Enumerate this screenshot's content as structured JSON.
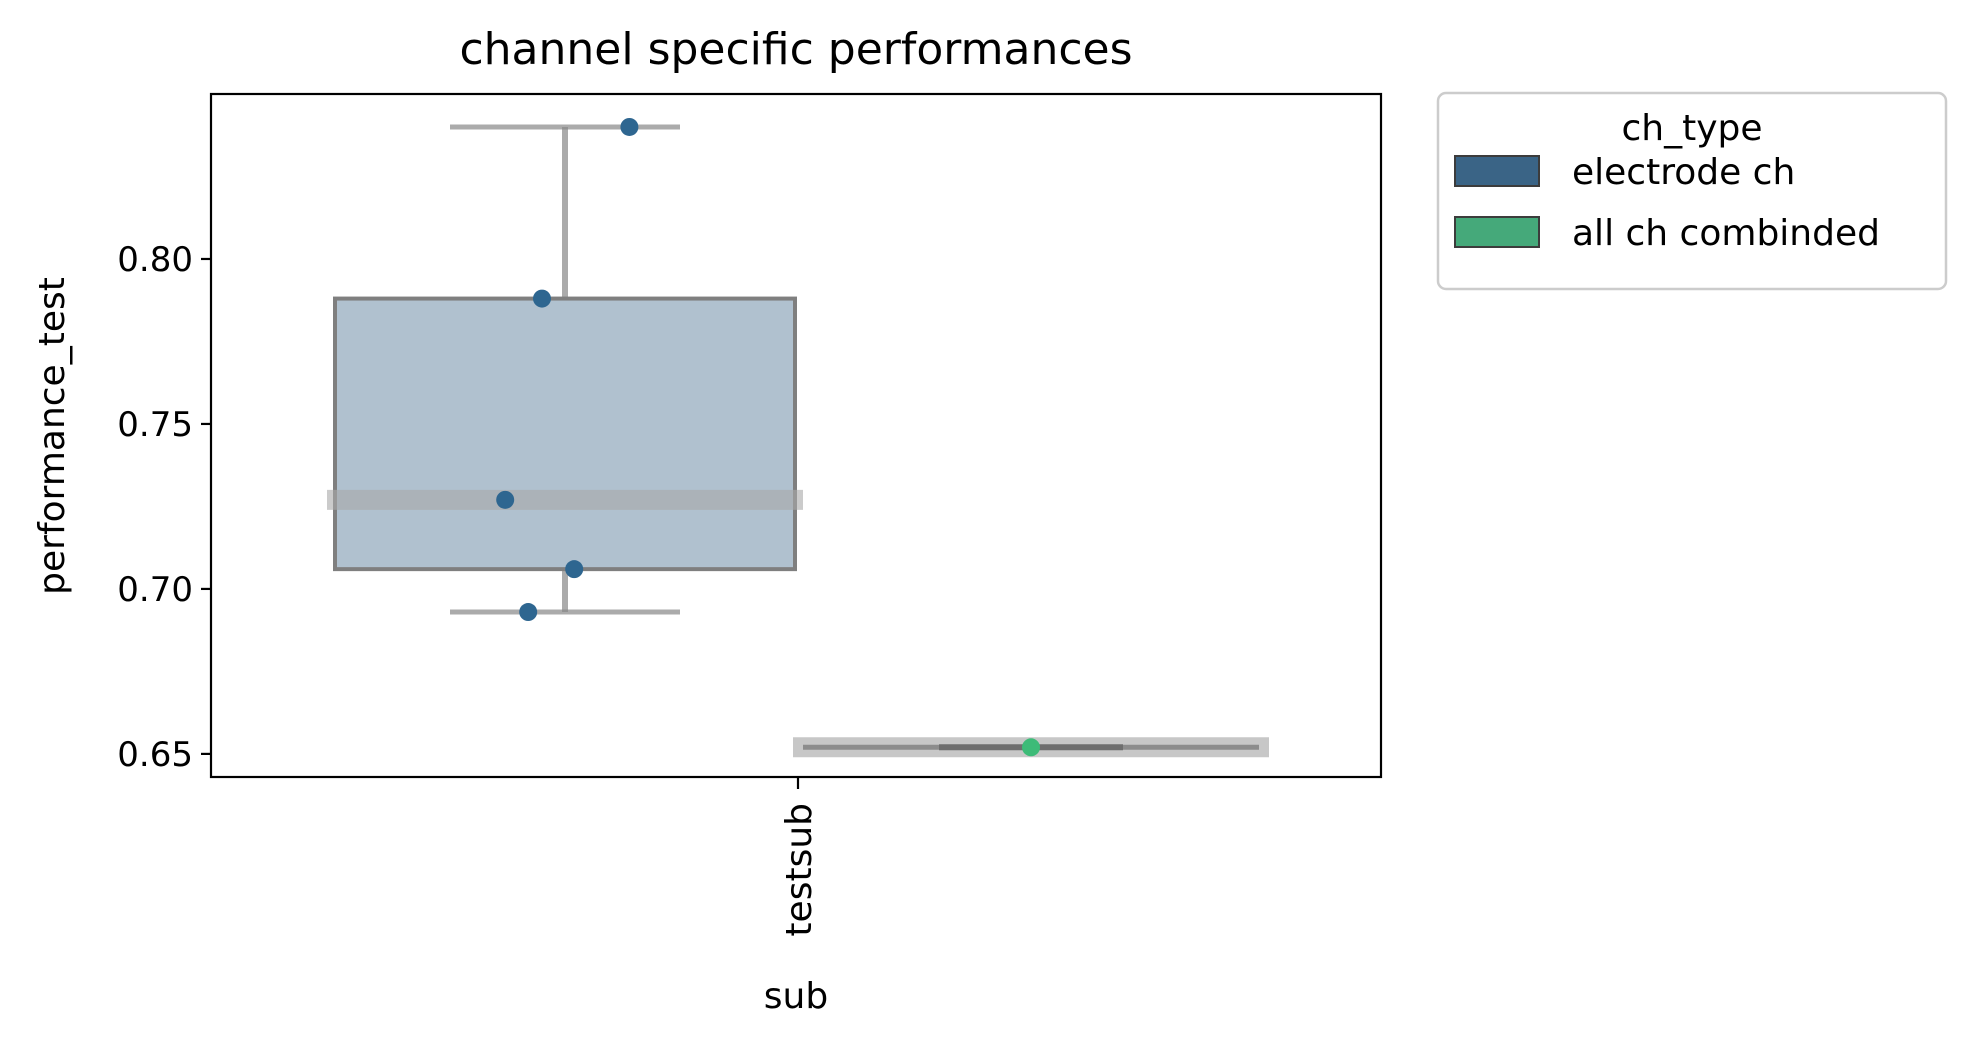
{
  "chart_data": {
    "type": "box",
    "title": "channel specific performances",
    "xlabel": "sub",
    "ylabel": "performance_test",
    "categories": [
      "testsub"
    ],
    "yticks": [
      0.65,
      0.7,
      0.75,
      0.8
    ],
    "ytick_labels": [
      "0.65",
      "0.70",
      "0.75",
      "0.80"
    ],
    "ylim": [
      0.643,
      0.85
    ],
    "grid": false,
    "legend": {
      "title": "ch_type",
      "placement": "outside-top-right",
      "entries": [
        {
          "label": "electrode ch",
          "color": "#3a6486"
        },
        {
          "label": "all ch combinded",
          "color": "#45a97a"
        }
      ]
    },
    "series": [
      {
        "name": "electrode ch",
        "category": "testsub",
        "box_color": "#b0c1cf",
        "point_color": "#2e6690",
        "box": {
          "whisker_low": 0.693,
          "q1": 0.706,
          "median": 0.727,
          "q3": 0.788,
          "whisker_high": 0.84
        },
        "points": [
          0.84,
          0.788,
          0.727,
          0.706,
          0.693
        ],
        "point_x_jitter": [
          0.14,
          -0.05,
          -0.13,
          0.02,
          -0.08
        ]
      },
      {
        "name": "all ch combinded",
        "category": "testsub",
        "box_color": "#b0c1cf",
        "point_color": "#3dbb78",
        "box": {
          "whisker_low": 0.652,
          "q1": 0.652,
          "median": 0.652,
          "q3": 0.652,
          "whisker_high": 0.652
        },
        "points": [
          0.652
        ],
        "point_x_jitter": [
          0.0
        ]
      }
    ]
  }
}
